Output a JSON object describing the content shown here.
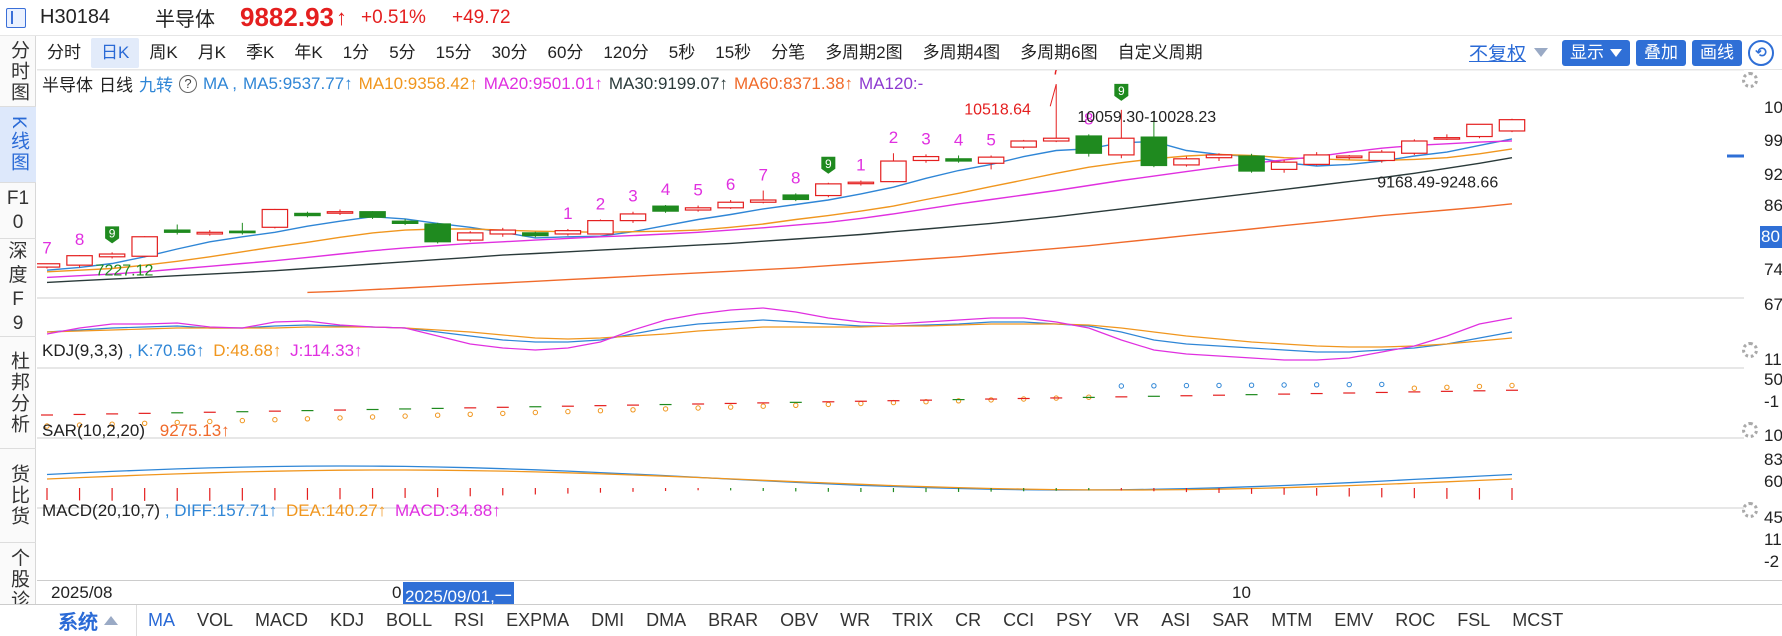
{
  "header": {
    "code": "H30184",
    "name": "半导体",
    "price": "9882.93",
    "arrow": "↑",
    "change_pct": "+0.51%",
    "change_val": "+49.72"
  },
  "left_nav": [
    {
      "label": "分时图",
      "active": false
    },
    {
      "label": "K线图",
      "active": true
    },
    {
      "label": "F10",
      "active": false
    },
    {
      "label": "深度F9",
      "active": false
    },
    {
      "label": "杜邦分析",
      "active": false
    },
    {
      "label": "货比货",
      "active": false
    },
    {
      "label": "个股诊断",
      "active": false
    }
  ],
  "periods": [
    "分时",
    "日K",
    "周K",
    "月K",
    "季K",
    "年K",
    "1分",
    "5分",
    "15分",
    "30分",
    "60分",
    "120分",
    "5秒",
    "15秒",
    "分笔",
    "多周期2图",
    "多周期4图",
    "多周期6图",
    "自定义周期"
  ],
  "active_period": "日K",
  "tools": {
    "fuquan": "不复权",
    "display": "显示",
    "overlay": "叠加",
    "draw": "画线",
    "circle_icon": "circle-arrow-icon"
  },
  "main_legend": {
    "name": "半导体",
    "freq": "日线",
    "jz": "九转",
    "q": "?",
    "ma": "MA ,",
    "ma5": "MA5:9537.77↑",
    "ma10": "MA10:9358.42↑",
    "ma20": "MA20:9501.01↑",
    "ma30": "MA30:9199.07↑",
    "ma60": "MA60:8371.38↑",
    "ma120": "MA120:-"
  },
  "kdj_legend": {
    "title": "KDJ(9,3,3)",
    "k": ", K:70.56↑",
    "d": "D:48.68↑",
    "j": "J:114.33↑"
  },
  "sar_legend": {
    "title": "SAR(10,2,20)",
    "val": "9275.13↑"
  },
  "macd_legend": {
    "title": "MACD(20,10,7)",
    "diff": ", DIFF:157.71↑",
    "dea": "DEA:140.27↑",
    "macd": "MACD:34.88↑"
  },
  "annotations": {
    "high": "10518.64",
    "mid1": "10059.30",
    "mid2": "10028.23",
    "low_left": "7227.12",
    "range": "9168.49-9248.66"
  },
  "right_axis": {
    "main": [
      "10",
      "99",
      "92",
      "86",
      "80",
      "74",
      "67"
    ],
    "kdj": [
      "11",
      "50",
      "-1"
    ],
    "sar": [
      "10",
      "83",
      "60"
    ],
    "macd": [
      "45",
      "11",
      "-2"
    ]
  },
  "time_axis": {
    "left": "2025/08",
    "cursor": "2025/09/01,一",
    "cursor_prefix": "0",
    "mid": "10"
  },
  "indicator_tabs": [
    "MA",
    "VOL",
    "MACD",
    "KDJ",
    "BOLL",
    "RSI",
    "EXPMA",
    "DMI",
    "DMA",
    "BRAR",
    "OBV",
    "WR",
    "TRIX",
    "CR",
    "CCI",
    "PSY",
    "VR",
    "ASI",
    "SAR",
    "MTM",
    "EMV",
    "ROC",
    "FSL",
    "MCST"
  ],
  "active_indicator": "MA",
  "system_label": "系统",
  "colors": {
    "up": "#e41f1f",
    "down": "#1f8a1f",
    "ma5": "#2f86d6",
    "ma10": "#f0961e",
    "ma20": "#e030e0",
    "ma30": "#2a3a3a",
    "ma60": "#f06a2a",
    "ma120": "#8e3ad0",
    "blue": "#2f6fd6"
  },
  "chart_data": {
    "type": "candlestick",
    "nine_turn_labels": [
      {
        "i": 0,
        "t": "7"
      },
      {
        "i": 1,
        "t": "8"
      },
      {
        "i": 2,
        "t": "9",
        "box": true
      },
      {
        "i": 16,
        "t": "1"
      },
      {
        "i": 17,
        "t": "2"
      },
      {
        "i": 18,
        "t": "3"
      },
      {
        "i": 19,
        "t": "4"
      },
      {
        "i": 20,
        "t": "5"
      },
      {
        "i": 21,
        "t": "6"
      },
      {
        "i": 22,
        "t": "7"
      },
      {
        "i": 23,
        "t": "8"
      },
      {
        "i": 24,
        "t": "9",
        "box": true
      },
      {
        "i": 25,
        "t": "1"
      },
      {
        "i": 26,
        "t": "2"
      },
      {
        "i": 27,
        "t": "3"
      },
      {
        "i": 28,
        "t": "4"
      },
      {
        "i": 29,
        "t": "5"
      },
      {
        "i": 31,
        "t": "7"
      },
      {
        "i": 32,
        "t": "8"
      },
      {
        "i": 33,
        "t": "9",
        "box": true
      }
    ],
    "candles": [
      [
        7235,
        7295,
        7210,
        7300
      ],
      [
        7270,
        7440,
        7227.12,
        7450
      ],
      [
        7420,
        7470,
        7390,
        7500
      ],
      [
        7430,
        7780,
        7410,
        7790
      ],
      [
        7900,
        7860,
        7820,
        8000
      ],
      [
        7830,
        7860,
        7800,
        7900
      ],
      [
        7880,
        7870,
        7820,
        8030
      ],
      [
        7950,
        8270,
        7930,
        8280
      ],
      [
        8200,
        8160,
        8130,
        8230
      ],
      [
        8210,
        8230,
        8170,
        8270
      ],
      [
        8230,
        8130,
        8100,
        8240
      ],
      [
        8060,
        8020,
        7990,
        8100
      ],
      [
        8010,
        7690,
        7660,
        8030
      ],
      [
        7720,
        7850,
        7690,
        7880
      ],
      [
        7830,
        7900,
        7780,
        7940
      ],
      [
        7850,
        7800,
        7770,
        7870
      ],
      [
        7830,
        7890,
        7800,
        7920
      ],
      [
        7830,
        8070,
        7820,
        8090
      ],
      [
        8070,
        8190,
        8030,
        8230
      ],
      [
        8330,
        8240,
        8210,
        8350
      ],
      [
        8260,
        8300,
        8230,
        8340
      ],
      [
        8300,
        8400,
        8280,
        8440
      ],
      [
        8400,
        8440,
        8380,
        8610
      ],
      [
        8530,
        8450,
        8420,
        8560
      ],
      [
        8520,
        8730,
        8490,
        8750
      ],
      [
        8740,
        8760,
        8700,
        8790
      ],
      [
        8770,
        9140,
        8760,
        9280
      ],
      [
        9150,
        9220,
        9110,
        9260
      ],
      [
        9180,
        9140,
        9110,
        9240
      ],
      [
        9100,
        9210,
        8990,
        9240
      ],
      [
        9390,
        9500,
        9360,
        9520
      ],
      [
        9500,
        9550,
        9480,
        10518.64
      ],
      [
        9590,
        9280,
        9220,
        9620
      ],
      [
        9250,
        9550,
        9190,
        10059.3
      ],
      [
        9570,
        9060,
        9030,
        10028.23
      ],
      [
        9070,
        9180,
        9040,
        9220
      ],
      [
        9200,
        9250,
        9140,
        9280
      ],
      [
        9230,
        8960,
        8930,
        9270
      ],
      [
        8990,
        9120,
        8930,
        9160
      ],
      [
        9080,
        9250,
        9060,
        9300
      ],
      [
        9200,
        9230,
        9168.49,
        9248.66
      ],
      [
        9150,
        9300,
        9110,
        9340
      ],
      [
        9280,
        9500,
        9250,
        9530
      ],
      [
        9560,
        9560,
        9520,
        9620
      ],
      [
        9580,
        9800,
        9550,
        9800
      ],
      [
        9680,
        9882.93,
        9660,
        9900
      ]
    ],
    "candle_format": [
      "open",
      "close",
      "low",
      "high"
    ],
    "y_range": [
      6680,
      10380
    ],
    "ma_series": [
      {
        "name": "MA5",
        "values": [
          7180,
          7230,
          7300,
          7420,
          7560,
          7690,
          7780,
          7860,
          7970,
          8060,
          8140,
          8100,
          8020,
          7950,
          7860,
          7760,
          7780,
          7790,
          7870,
          7980,
          8090,
          8180,
          8280,
          8360,
          8440,
          8550,
          8670,
          8830,
          8970,
          9080,
          9220,
          9330,
          9360,
          9470,
          9490,
          9330,
          9260,
          9220,
          9110,
          9050,
          9080,
          9140,
          9230,
          9300,
          9420,
          9537.77
        ]
      },
      {
        "name": "MA10",
        "values": [
          7150,
          7180,
          7210,
          7270,
          7340,
          7420,
          7510,
          7600,
          7680,
          7770,
          7850,
          7900,
          7920,
          7920,
          7900,
          7880,
          7870,
          7860,
          7870,
          7880,
          7900,
          7950,
          8010,
          8090,
          8160,
          8240,
          8330,
          8450,
          8560,
          8680,
          8800,
          8920,
          9030,
          9110,
          9180,
          9230,
          9260,
          9240,
          9200,
          9180,
          9160,
          9150,
          9170,
          9200,
          9270,
          9358.42
        ]
      },
      {
        "name": "MA20",
        "values": [
          7050,
          7080,
          7110,
          7150,
          7200,
          7250,
          7300,
          7350,
          7410,
          7470,
          7530,
          7580,
          7620,
          7660,
          7690,
          7720,
          7750,
          7780,
          7800,
          7830,
          7860,
          7900,
          7940,
          7990,
          8040,
          8110,
          8190,
          8280,
          8370,
          8450,
          8530,
          8610,
          8700,
          8790,
          8870,
          8950,
          9030,
          9100,
          9160,
          9220,
          9300,
          9370,
          9420,
          9450,
          9480,
          9501.01
        ]
      },
      {
        "name": "MA30",
        "values": [
          6960,
          6990,
          7020,
          7050,
          7080,
          7110,
          7140,
          7170,
          7210,
          7250,
          7290,
          7330,
          7370,
          7410,
          7450,
          7480,
          7510,
          7540,
          7570,
          7600,
          7630,
          7660,
          7700,
          7740,
          7780,
          7820,
          7870,
          7920,
          7970,
          8020,
          8080,
          8140,
          8210,
          8280,
          8350,
          8420,
          8490,
          8560,
          8630,
          8700,
          8770,
          8840,
          8920,
          9010,
          9100,
          9199.07
        ]
      },
      {
        "name": "MA60",
        "values": [
          null,
          null,
          null,
          null,
          null,
          null,
          null,
          null,
          6780,
          6800,
          6830,
          6860,
          6890,
          6920,
          6950,
          6980,
          7010,
          7040,
          7070,
          7100,
          7130,
          7160,
          7190,
          7220,
          7260,
          7300,
          7340,
          7380,
          7420,
          7470,
          7520,
          7570,
          7620,
          7680,
          7740,
          7800,
          7860,
          7920,
          7980,
          8040,
          8100,
          8160,
          8210,
          8260,
          8310,
          8371.38
        ]
      }
    ]
  }
}
